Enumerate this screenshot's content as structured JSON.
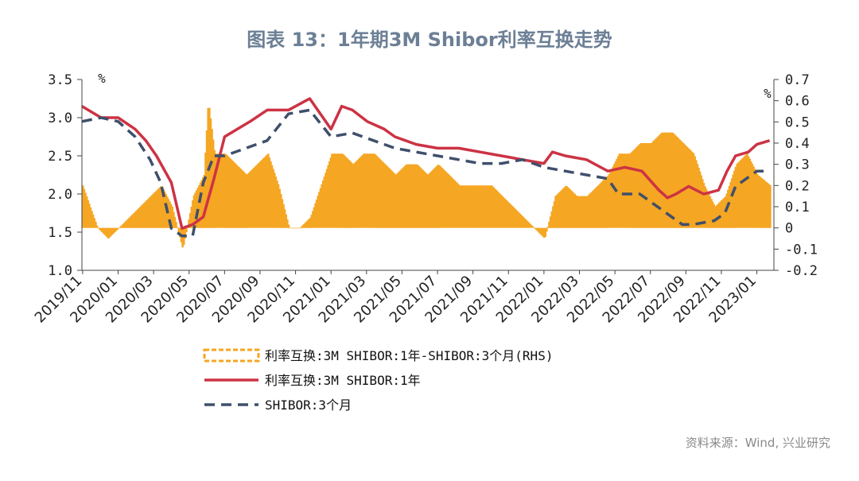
{
  "title": "图表 13：1年期3M Shibor利率互换走势",
  "source": "资料来源：Wind, 兴业研究",
  "chart_data": {
    "type": "line",
    "y_left": {
      "unit": "%",
      "ticks": [
        "3.5",
        "3.0",
        "2.5",
        "2.0",
        "1.5",
        "1.0"
      ],
      "ylim": [
        1.0,
        3.5
      ]
    },
    "y_right": {
      "unit": "%",
      "ticks": [
        "0.7",
        "0.6",
        "0.5",
        "0.4",
        "0.3",
        "0.2",
        "0.1",
        "0",
        "-0.1",
        "-0.2"
      ],
      "ylim": [
        -0.2,
        0.7
      ]
    },
    "x_ticks": [
      "2019/11",
      "2020/01",
      "2020/03",
      "2020/05",
      "2020/07",
      "2020/09",
      "2020/11",
      "2021/01",
      "2021/03",
      "2021/05",
      "2021/07",
      "2021/09",
      "2021/11",
      "2022/01",
      "2022/03",
      "2022/05",
      "2022/07",
      "2022/09",
      "2022/11",
      "2023/01"
    ],
    "legend": [
      "利率互换:3M SHIBOR:1年-SHIBOR:3个月(RHS)",
      "利率互换:3M SHIBOR:1年",
      "SHIBOR:3个月"
    ],
    "colors": {
      "spread": "#f5a623",
      "swap": "#cc3344",
      "shibor": "#3f4f6b"
    },
    "series": [
      {
        "name": "利率互换:3M SHIBOR:1年",
        "axis": "left",
        "x": [
          2019.83,
          2019.92,
          2020.0,
          2020.08,
          2020.13,
          2020.18,
          2020.25,
          2020.3,
          2020.35,
          2020.4,
          2020.45,
          2020.5,
          2020.56,
          2020.62,
          2020.7,
          2020.8,
          2020.9,
          2021.0,
          2021.05,
          2021.1,
          2021.17,
          2021.25,
          2021.3,
          2021.4,
          2021.5,
          2021.6,
          2021.7,
          2021.8,
          2021.9,
          2022.0,
          2022.04,
          2022.1,
          2022.2,
          2022.3,
          2022.38,
          2022.46,
          2022.54,
          2022.58,
          2022.62,
          2022.68,
          2022.75,
          2022.82,
          2022.86,
          2022.9,
          2022.96,
          2023.0,
          2023.06
        ],
        "values": [
          3.15,
          3.0,
          3.0,
          2.85,
          2.7,
          2.5,
          2.15,
          1.55,
          1.6,
          1.7,
          2.2,
          2.75,
          2.85,
          2.95,
          3.1,
          3.1,
          3.25,
          2.85,
          3.15,
          3.1,
          2.95,
          2.85,
          2.75,
          2.65,
          2.6,
          2.6,
          2.55,
          2.5,
          2.45,
          2.4,
          2.55,
          2.5,
          2.45,
          2.3,
          2.35,
          2.3,
          2.05,
          1.95,
          2.0,
          2.1,
          2.0,
          2.05,
          2.3,
          2.5,
          2.55,
          2.65,
          2.7
        ]
      },
      {
        "name": "SHIBOR:3个月",
        "axis": "left",
        "x": [
          2019.83,
          2019.92,
          2020.0,
          2020.08,
          2020.15,
          2020.2,
          2020.25,
          2020.3,
          2020.35,
          2020.4,
          2020.45,
          2020.5,
          2020.6,
          2020.7,
          2020.8,
          2020.9,
          2021.0,
          2021.1,
          2021.2,
          2021.3,
          2021.4,
          2021.5,
          2021.6,
          2021.7,
          2021.8,
          2021.9,
          2022.0,
          2022.1,
          2022.2,
          2022.3,
          2022.35,
          2022.45,
          2022.55,
          2022.6,
          2022.65,
          2022.7,
          2022.8,
          2022.85,
          2022.9,
          2022.95,
          2023.0,
          2023.06
        ],
        "values": [
          2.95,
          3.0,
          2.95,
          2.75,
          2.45,
          2.15,
          1.55,
          1.45,
          1.45,
          2.15,
          2.5,
          2.5,
          2.6,
          2.7,
          3.05,
          3.1,
          2.75,
          2.8,
          2.7,
          2.6,
          2.55,
          2.5,
          2.45,
          2.4,
          2.4,
          2.45,
          2.35,
          2.3,
          2.25,
          2.2,
          2.0,
          2.0,
          1.8,
          1.7,
          1.6,
          1.6,
          1.65,
          1.75,
          2.1,
          2.2,
          2.3,
          2.3
        ]
      },
      {
        "name": "利率互换:3M SHIBOR:1年-SHIBOR:3个月(RHS)",
        "axis": "right",
        "x": [
          2019.83,
          2019.9,
          2019.95,
          2020.0,
          2020.05,
          2020.1,
          2020.15,
          2020.2,
          2020.25,
          2020.3,
          2020.35,
          2020.4,
          2020.42,
          2020.45,
          2020.5,
          2020.55,
          2020.6,
          2020.65,
          2020.7,
          2020.75,
          2020.8,
          2020.85,
          2020.9,
          2020.95,
          2021.0,
          2021.05,
          2021.1,
          2021.15,
          2021.2,
          2021.25,
          2021.3,
          2021.35,
          2021.4,
          2021.45,
          2021.5,
          2021.55,
          2021.6,
          2021.65,
          2021.7,
          2021.75,
          2021.8,
          2021.85,
          2021.9,
          2021.95,
          2022.0,
          2022.05,
          2022.1,
          2022.15,
          2022.2,
          2022.25,
          2022.3,
          2022.35,
          2022.4,
          2022.45,
          2022.5,
          2022.55,
          2022.6,
          2022.65,
          2022.7,
          2022.75,
          2022.8,
          2022.85,
          2022.9,
          2022.95,
          2023.0,
          2023.06
        ],
        "values": [
          0.2,
          0.0,
          -0.05,
          0.0,
          0.05,
          0.1,
          0.15,
          0.2,
          0.1,
          -0.1,
          0.15,
          0.25,
          0.6,
          0.35,
          0.35,
          0.3,
          0.25,
          0.3,
          0.35,
          0.2,
          0.0,
          0.0,
          0.05,
          0.2,
          0.35,
          0.35,
          0.3,
          0.35,
          0.35,
          0.3,
          0.25,
          0.3,
          0.3,
          0.25,
          0.3,
          0.25,
          0.2,
          0.2,
          0.2,
          0.2,
          0.15,
          0.1,
          0.05,
          0.0,
          -0.05,
          0.15,
          0.2,
          0.15,
          0.15,
          0.2,
          0.25,
          0.35,
          0.35,
          0.4,
          0.4,
          0.45,
          0.45,
          0.4,
          0.35,
          0.2,
          0.1,
          0.15,
          0.3,
          0.35,
          0.25,
          0.2
        ]
      }
    ]
  }
}
